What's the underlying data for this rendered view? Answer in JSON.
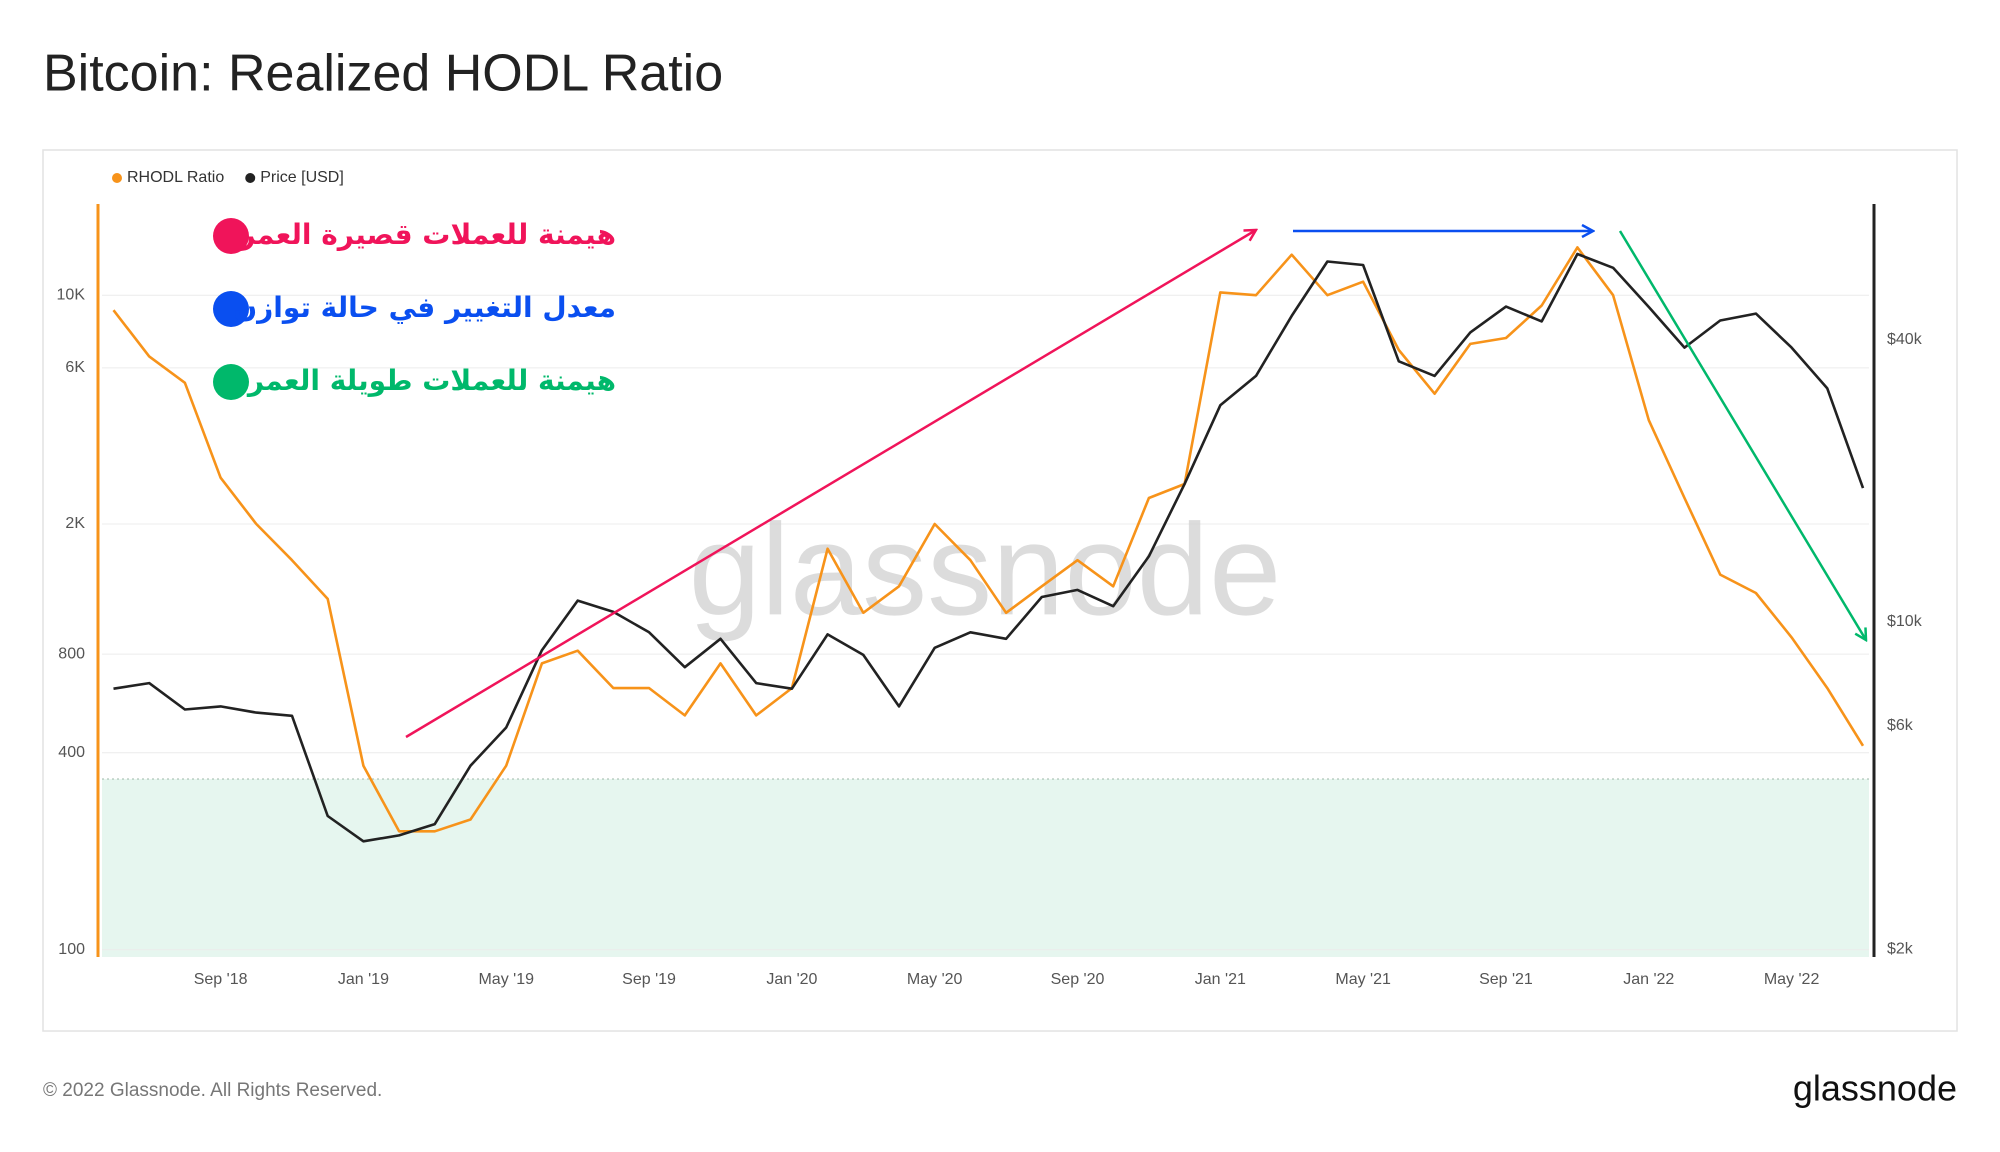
{
  "chart_data": {
    "type": "line",
    "title": "Bitcoin: Realized HODL Ratio",
    "x": [
      "2018-06",
      "2018-07",
      "2018-08",
      "2018-09",
      "2018-10",
      "2018-11",
      "2018-12",
      "2019-01",
      "2019-02",
      "2019-03",
      "2019-04",
      "2019-05",
      "2019-06",
      "2019-07",
      "2019-08",
      "2019-09",
      "2019-10",
      "2019-11",
      "2019-12",
      "2020-01",
      "2020-02",
      "2020-03",
      "2020-04",
      "2020-05",
      "2020-06",
      "2020-07",
      "2020-08",
      "2020-09",
      "2020-10",
      "2020-11",
      "2020-12",
      "2021-01",
      "2021-02",
      "2021-03",
      "2021-04",
      "2021-05",
      "2021-06",
      "2021-07",
      "2021-08",
      "2021-09",
      "2021-10",
      "2021-11",
      "2021-12",
      "2022-01",
      "2022-02",
      "2022-03",
      "2022-04",
      "2022-05",
      "2022-06",
      "2022-07"
    ],
    "xlim": [
      "2018-06",
      "2022-07"
    ],
    "xticks": [
      {
        "value": "2018-09",
        "label": "Sep '18"
      },
      {
        "value": "2019-01",
        "label": "Jan '19"
      },
      {
        "value": "2019-05",
        "label": "May '19"
      },
      {
        "value": "2019-09",
        "label": "Sep '19"
      },
      {
        "value": "2020-01",
        "label": "Jan '20"
      },
      {
        "value": "2020-05",
        "label": "May '20"
      },
      {
        "value": "2020-09",
        "label": "Sep '20"
      },
      {
        "value": "2021-01",
        "label": "Jan '21"
      },
      {
        "value": "2021-05",
        "label": "May '21"
      },
      {
        "value": "2021-09",
        "label": "Sep '21"
      },
      {
        "value": "2022-01",
        "label": "Jan '22"
      },
      {
        "value": "2022-05",
        "label": "May '22"
      }
    ],
    "series": [
      {
        "name": "RHODL Ratio",
        "color": "#f7931a",
        "axis": "y",
        "values": [
          9000,
          6500,
          5400,
          2770,
          2000,
          1550,
          1180,
          365,
          230,
          230,
          250,
          365,
          750,
          820,
          630,
          630,
          520,
          750,
          520,
          630,
          1680,
          1070,
          1290,
          2000,
          1550,
          1070,
          1290,
          1550,
          1290,
          2400,
          2650,
          10200,
          10000,
          13300,
          10000,
          11000,
          6800,
          5000,
          7100,
          7400,
          9300,
          14000,
          10000,
          4150,
          2400,
          1400,
          1230,
          900,
          630,
          420
        ]
      },
      {
        "name": "Price [USD]",
        "color": "#222222",
        "axis": "y2",
        "values": [
          7200,
          7400,
          6500,
          6600,
          6400,
          6300,
          3850,
          3400,
          3500,
          3700,
          4930,
          5950,
          8700,
          11100,
          10500,
          9500,
          8000,
          9200,
          7400,
          7200,
          9400,
          8500,
          6600,
          8800,
          9500,
          9200,
          11300,
          11700,
          10800,
          13800,
          19700,
          29000,
          33500,
          45000,
          58800,
          57800,
          36000,
          33500,
          41500,
          47100,
          43800,
          61000,
          57000,
          47000,
          38500,
          44000,
          45500,
          38500,
          31500,
          19300
        ]
      }
    ],
    "yscale": "log",
    "ylim": [
      95,
      19000
    ],
    "yticks": [
      100,
      400,
      800,
      {
        "value": 2000,
        "label": "2K"
      },
      {
        "value": 6000,
        "label": "6K"
      },
      {
        "value": 10000,
        "label": "10K"
      }
    ],
    "y2scale": "log",
    "y2lim": [
      1925,
      78000
    ],
    "y2ticks": [
      {
        "value": 2000,
        "label": "$2k"
      },
      {
        "value": 6000,
        "label": "$6k"
      },
      {
        "value": 10000,
        "label": "$10k"
      },
      {
        "value": 40000,
        "label": "$40k"
      }
    ],
    "grid": true,
    "watermark": "glassnode",
    "annotations": [
      {
        "text": "هيمنة للعملات قصيرة العمر",
        "color": "#f0145a"
      },
      {
        "text": "معدل التغيير في حالة توازن",
        "color": "#0a4ff0"
      },
      {
        "text": "هيمنة للعملات طويلة العمر",
        "color": "#00b86b"
      }
    ]
  },
  "footer": {
    "copyright": "© 2022 Glassnode. All Rights Reserved.",
    "logo": "glassnode"
  }
}
